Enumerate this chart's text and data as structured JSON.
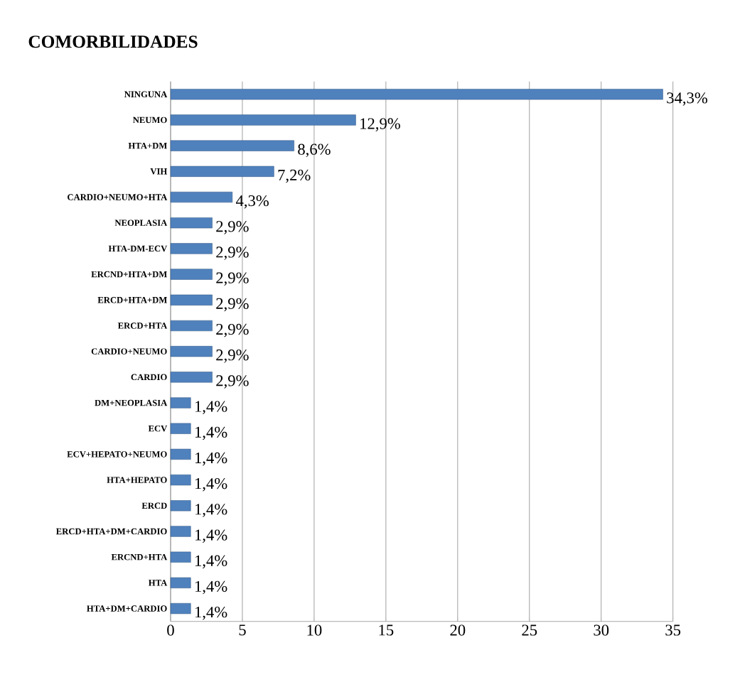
{
  "chart_data": {
    "type": "bar",
    "orientation": "horizontal",
    "title": "COMORBILIDADES",
    "categories": [
      "NINGUNA",
      "NEUMO",
      "HTA+DM",
      "VIH",
      "CARDIO+NEUMO+HTA",
      "NEOPLASIA",
      "HTA-DM-ECV",
      "ERCND+HTA+DM",
      "ERCD+HTA+DM",
      "ERCD+HTA",
      "CARDIO+NEUMO",
      "CARDIO",
      "DM+NEOPLASIA",
      "ECV",
      "ECV+HEPATO+NEUMO",
      "HTA+HEPATO",
      "ERCD",
      "ERCD+HTA+DM+CARDIO",
      "ERCND+HTA",
      "HTA",
      "HTA+DM+CARDIO"
    ],
    "values": [
      34.3,
      12.9,
      8.6,
      7.2,
      4.3,
      2.9,
      2.9,
      2.9,
      2.9,
      2.9,
      2.9,
      2.9,
      1.4,
      1.4,
      1.4,
      1.4,
      1.4,
      1.4,
      1.4,
      1.4,
      1.4
    ],
    "value_labels": [
      "34,3%",
      "12,9%",
      "8,6%",
      "7,2%",
      "4,3%",
      "2,9%",
      "2,9%",
      "2,9%",
      "2,9%",
      "2,9%",
      "2,9%",
      "2,9%",
      "1,4%",
      "1,4%",
      "1,4%",
      "1,4%",
      "1,4%",
      "1,4%",
      "1,4%",
      "1,4%",
      "1,4%"
    ],
    "color": "#4f81bd",
    "xlim": [
      0,
      35
    ],
    "xticks": [
      0,
      5,
      10,
      15,
      20,
      25,
      30,
      35
    ],
    "grid": "x"
  }
}
